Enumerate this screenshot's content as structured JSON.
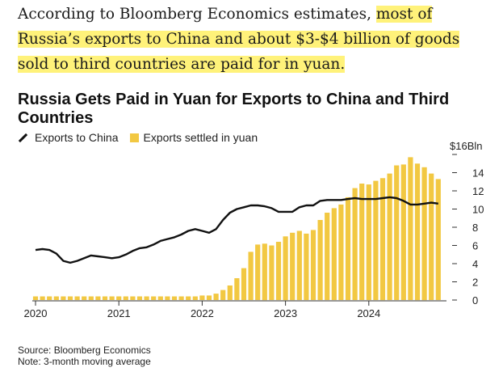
{
  "intro": {
    "part1": "According to Bloomberg Economics estimates, ",
    "highlight1": "most of Russia’s exports to China and about $3-$4 billion of goods sold to third countries are paid for in yuan.",
    "highlight_color": "#fff27a"
  },
  "footer": {
    "source": "Source: Bloomberg Economics",
    "note": "Note: 3-month moving average"
  },
  "chart_data": {
    "type": "bar",
    "title": "Russia Gets Paid in Yuan for Exports to China and Third Countries",
    "ylabel": "$16Bln",
    "ylim": [
      0,
      16
    ],
    "yticks": [
      0,
      2,
      4,
      6,
      8,
      10,
      12,
      14,
      16
    ],
    "ytick_labels": [
      "0",
      "2",
      "4",
      "6",
      "8",
      "10",
      "12",
      "14",
      "$16Bln"
    ],
    "xticks": [
      "2020",
      "2021",
      "2022",
      "2023",
      "2024"
    ],
    "x_start": "2020-01",
    "grid": false,
    "legend_position": "top-left",
    "colors": {
      "bars": "#f2c842",
      "line": "#111111",
      "axis": "#333333"
    },
    "series": [
      {
        "name": "Exports settled in yuan",
        "type": "bar",
        "values": [
          0.4,
          0.4,
          0.4,
          0.4,
          0.4,
          0.4,
          0.4,
          0.4,
          0.4,
          0.4,
          0.4,
          0.4,
          0.4,
          0.4,
          0.4,
          0.4,
          0.4,
          0.4,
          0.4,
          0.4,
          0.4,
          0.4,
          0.4,
          0.4,
          0.5,
          0.5,
          0.7,
          1.1,
          1.6,
          2.4,
          3.5,
          5.3,
          6.1,
          6.2,
          6.0,
          6.4,
          7.0,
          7.4,
          7.6,
          7.3,
          7.7,
          8.8,
          9.6,
          10.1,
          10.5,
          11.3,
          12.3,
          12.8,
          12.7,
          13.1,
          13.4,
          13.9,
          14.8,
          14.9,
          15.7,
          15.0,
          14.6,
          13.9,
          13.3
        ]
      },
      {
        "name": "Exports to China",
        "type": "line",
        "values": [
          5.5,
          5.6,
          5.5,
          5.1,
          4.3,
          4.1,
          4.3,
          4.6,
          4.9,
          4.8,
          4.7,
          4.6,
          4.7,
          5.0,
          5.4,
          5.7,
          5.8,
          6.1,
          6.5,
          6.7,
          6.9,
          7.2,
          7.6,
          7.8,
          7.6,
          7.4,
          7.8,
          8.8,
          9.6,
          10.0,
          10.2,
          10.4,
          10.4,
          10.3,
          10.1,
          9.7,
          9.7,
          9.7,
          10.2,
          10.4,
          10.4,
          10.9,
          11.0,
          11.0,
          11.0,
          11.1,
          11.2,
          11.1,
          11.1,
          11.1,
          11.2,
          11.3,
          11.2,
          10.9,
          10.5,
          10.5,
          10.6,
          10.7,
          10.6
        ]
      }
    ]
  }
}
